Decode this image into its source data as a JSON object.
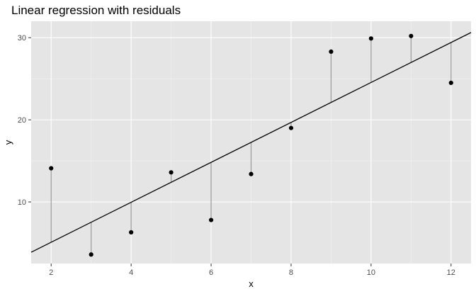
{
  "chart_data": {
    "type": "scatter",
    "title": "Linear regression with residuals",
    "xlabel": "x",
    "ylabel": "y",
    "xlim": [
      1.5,
      12.5
    ],
    "ylim": [
      2.5,
      32
    ],
    "xticks": [
      2,
      4,
      6,
      8,
      10,
      12
    ],
    "yticks": [
      10,
      20,
      30
    ],
    "grid": true,
    "colors": {
      "panel": "#e5e5e5",
      "grid_major": "#ffffff",
      "points": "#000000",
      "residuals": "#999999",
      "fit_line": "#000000"
    },
    "points": [
      {
        "x": 2,
        "y": 14.1,
        "fitted": 5.1
      },
      {
        "x": 3,
        "y": 3.6,
        "fitted": 7.5
      },
      {
        "x": 4,
        "y": 6.3,
        "fitted": 10.0
      },
      {
        "x": 5,
        "y": 13.6,
        "fitted": 12.4
      },
      {
        "x": 6,
        "y": 7.8,
        "fitted": 14.8
      },
      {
        "x": 7,
        "y": 13.4,
        "fitted": 17.3
      },
      {
        "x": 8,
        "y": 19.0,
        "fitted": 19.7
      },
      {
        "x": 9,
        "y": 28.3,
        "fitted": 22.1
      },
      {
        "x": 10,
        "y": 29.9,
        "fitted": 24.6
      },
      {
        "x": 11,
        "y": 30.2,
        "fitted": 27.0
      },
      {
        "x": 12,
        "y": 24.5,
        "fitted": 29.4
      }
    ],
    "fit_line": {
      "intercept": 0.23,
      "slope": 2.432
    }
  }
}
